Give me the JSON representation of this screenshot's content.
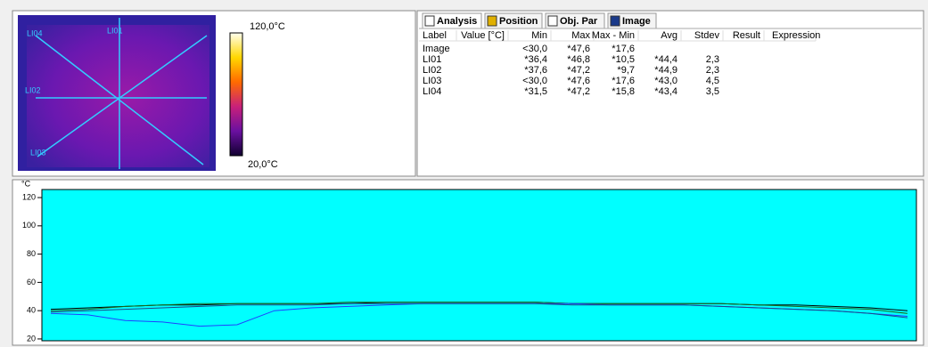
{
  "image_panel": {
    "line_labels": [
      "LI01",
      "LI02",
      "LI03",
      "LI04"
    ],
    "scale_max": "120,0°C",
    "scale_min": "20,0°C"
  },
  "tabs": [
    "Analysis",
    "Position",
    "Obj. Par",
    "Image"
  ],
  "table": {
    "columns": [
      "Label",
      "Value [°C]",
      "Min",
      "Max",
      "Max - Min",
      "Avg",
      "Stdev",
      "Result",
      "Expression"
    ],
    "rows": [
      [
        "Image",
        null,
        "<30,0",
        "*47,6",
        "*17,6",
        null,
        null,
        null,
        null
      ],
      [
        "LI01",
        null,
        "*36,4",
        "*46,8",
        "*10,5",
        "*44,4",
        "2,3",
        null,
        null
      ],
      [
        "LI02",
        null,
        "*37,6",
        "*47,2",
        "*9,7",
        "*44,9",
        "2,3",
        null,
        null
      ],
      [
        "LI03",
        null,
        "<30,0",
        "*47,6",
        "*17,6",
        "*43,0",
        "4,5",
        null,
        null
      ],
      [
        "LI04",
        null,
        "*31,5",
        "*47,2",
        "*15,8",
        "*43,4",
        "3,5",
        null,
        null
      ]
    ]
  },
  "chart_data": {
    "type": "line",
    "ylabel": "°C",
    "categories": [
      null,
      null,
      null,
      null,
      null,
      null,
      null,
      null,
      null,
      null,
      null,
      null,
      null,
      null,
      null,
      null,
      null,
      null,
      null,
      null,
      null,
      null,
      null,
      null
    ],
    "series": [
      {
        "color": "#000000",
        "values": [
          41,
          42,
          43,
          44,
          44,
          45,
          45,
          45,
          45,
          46,
          46,
          46,
          46,
          46,
          45,
          45,
          45,
          45,
          45,
          44,
          44,
          43,
          42,
          40
        ]
      },
      {
        "color": "#1a6b1a",
        "values": [
          40,
          41,
          43,
          44,
          45,
          45,
          45,
          45,
          46,
          46,
          46,
          46,
          46,
          46,
          45,
          45,
          45,
          45,
          45,
          44,
          43,
          42,
          41,
          38
        ]
      },
      {
        "color": "#2040ff",
        "values": [
          38,
          37,
          33,
          32,
          29,
          30,
          40,
          42,
          43,
          44,
          45,
          45,
          45,
          45,
          45,
          44,
          44,
          44,
          43,
          42,
          41,
          40,
          38,
          36
        ]
      },
      {
        "color": "#1a4a8a",
        "values": [
          39,
          40,
          41,
          42,
          43,
          44,
          44,
          44,
          45,
          45,
          45,
          45,
          45,
          45,
          44,
          44,
          44,
          44,
          43,
          42,
          41,
          40,
          38,
          35
        ]
      }
    ],
    "ylim": [
      18.7,
      125.7
    ],
    "yticks": [
      20,
      40,
      60,
      80,
      100,
      120
    ],
    "background": "#00ffff"
  }
}
